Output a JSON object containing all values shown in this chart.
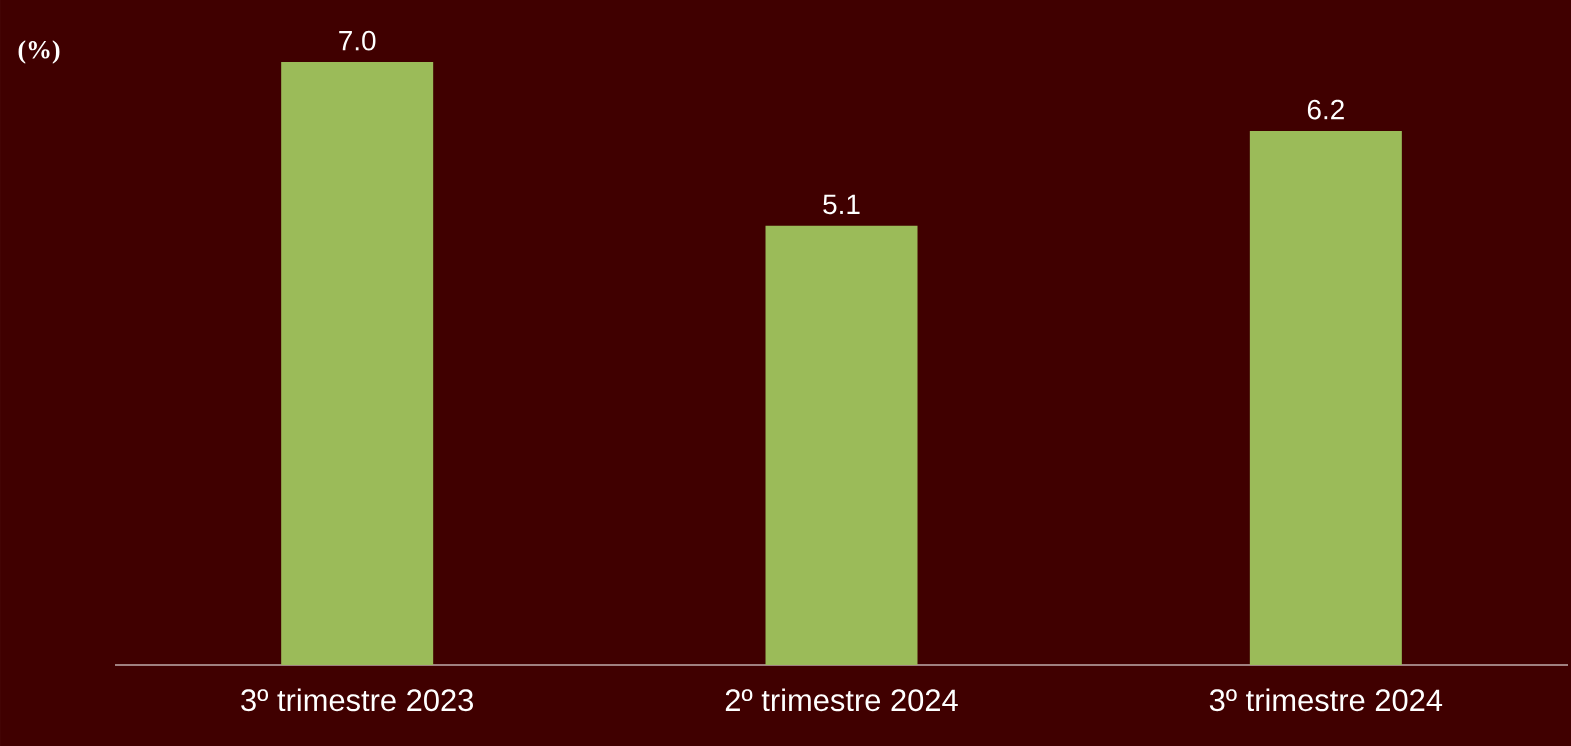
{
  "chart_data": {
    "type": "bar",
    "ylabel": "(%)",
    "categories": [
      "3º trimestre 2023",
      "2º trimestre 2024",
      "3º trimestre 2024"
    ],
    "values": [
      7.0,
      5.1,
      6.2
    ],
    "color": "#9bbb59",
    "value_labels": [
      "7.0",
      "5.1",
      "6.2"
    ]
  }
}
